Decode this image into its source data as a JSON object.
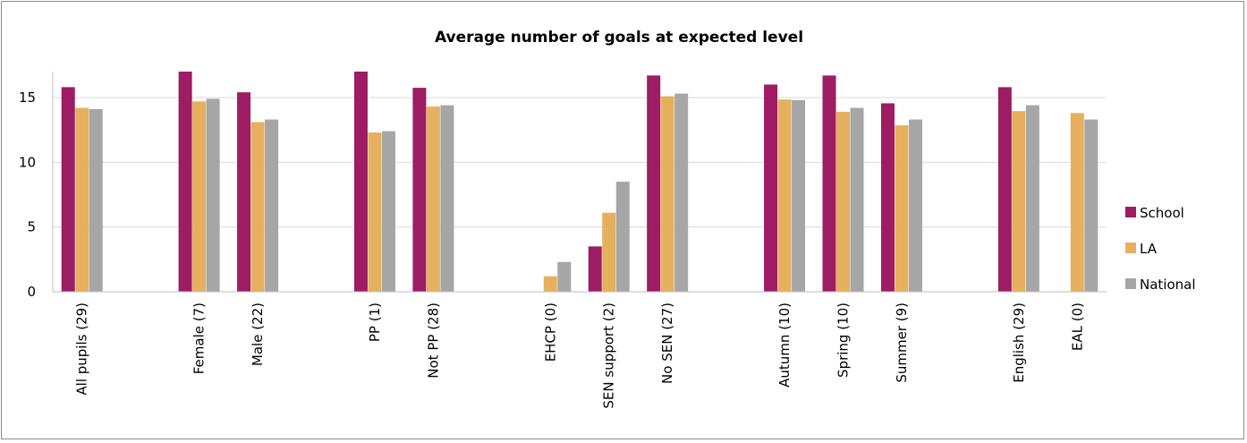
{
  "chart_data": {
    "type": "bar",
    "title": "Average number of goals at expected level",
    "xlabel": "",
    "ylabel": "",
    "ylim": [
      0,
      17
    ],
    "yticks": [
      0,
      5,
      10,
      15
    ],
    "grid": true,
    "legend_position": "right",
    "slots": [
      "All pupils (29)",
      "",
      "Female (7)",
      "Male (22)",
      "",
      "PP (1)",
      "Not PP (28)",
      "",
      "EHCP (0)",
      "SEN support (2)",
      "No SEN (27)",
      "",
      "Autumn (10)",
      "Spring (10)",
      "Summer (9)",
      "",
      "English (29)",
      "EAL (0)"
    ],
    "series": [
      {
        "name": "School",
        "color": "#9e1c64",
        "values": [
          15.8,
          null,
          17.0,
          15.4,
          null,
          17.0,
          15.75,
          null,
          0,
          3.5,
          16.7,
          null,
          16.0,
          16.7,
          14.55,
          null,
          15.8,
          0
        ]
      },
      {
        "name": "LA",
        "color": "#e6b05e",
        "values": [
          14.2,
          null,
          14.7,
          13.1,
          null,
          12.3,
          14.3,
          null,
          1.2,
          6.1,
          15.1,
          null,
          14.85,
          13.9,
          12.85,
          null,
          13.95,
          13.8
        ]
      },
      {
        "name": "National",
        "color": "#a6a6a6",
        "values": [
          14.1,
          null,
          14.9,
          13.3,
          null,
          12.4,
          14.4,
          null,
          2.3,
          8.5,
          15.3,
          null,
          14.8,
          14.2,
          13.3,
          null,
          14.4,
          13.3
        ]
      }
    ]
  }
}
